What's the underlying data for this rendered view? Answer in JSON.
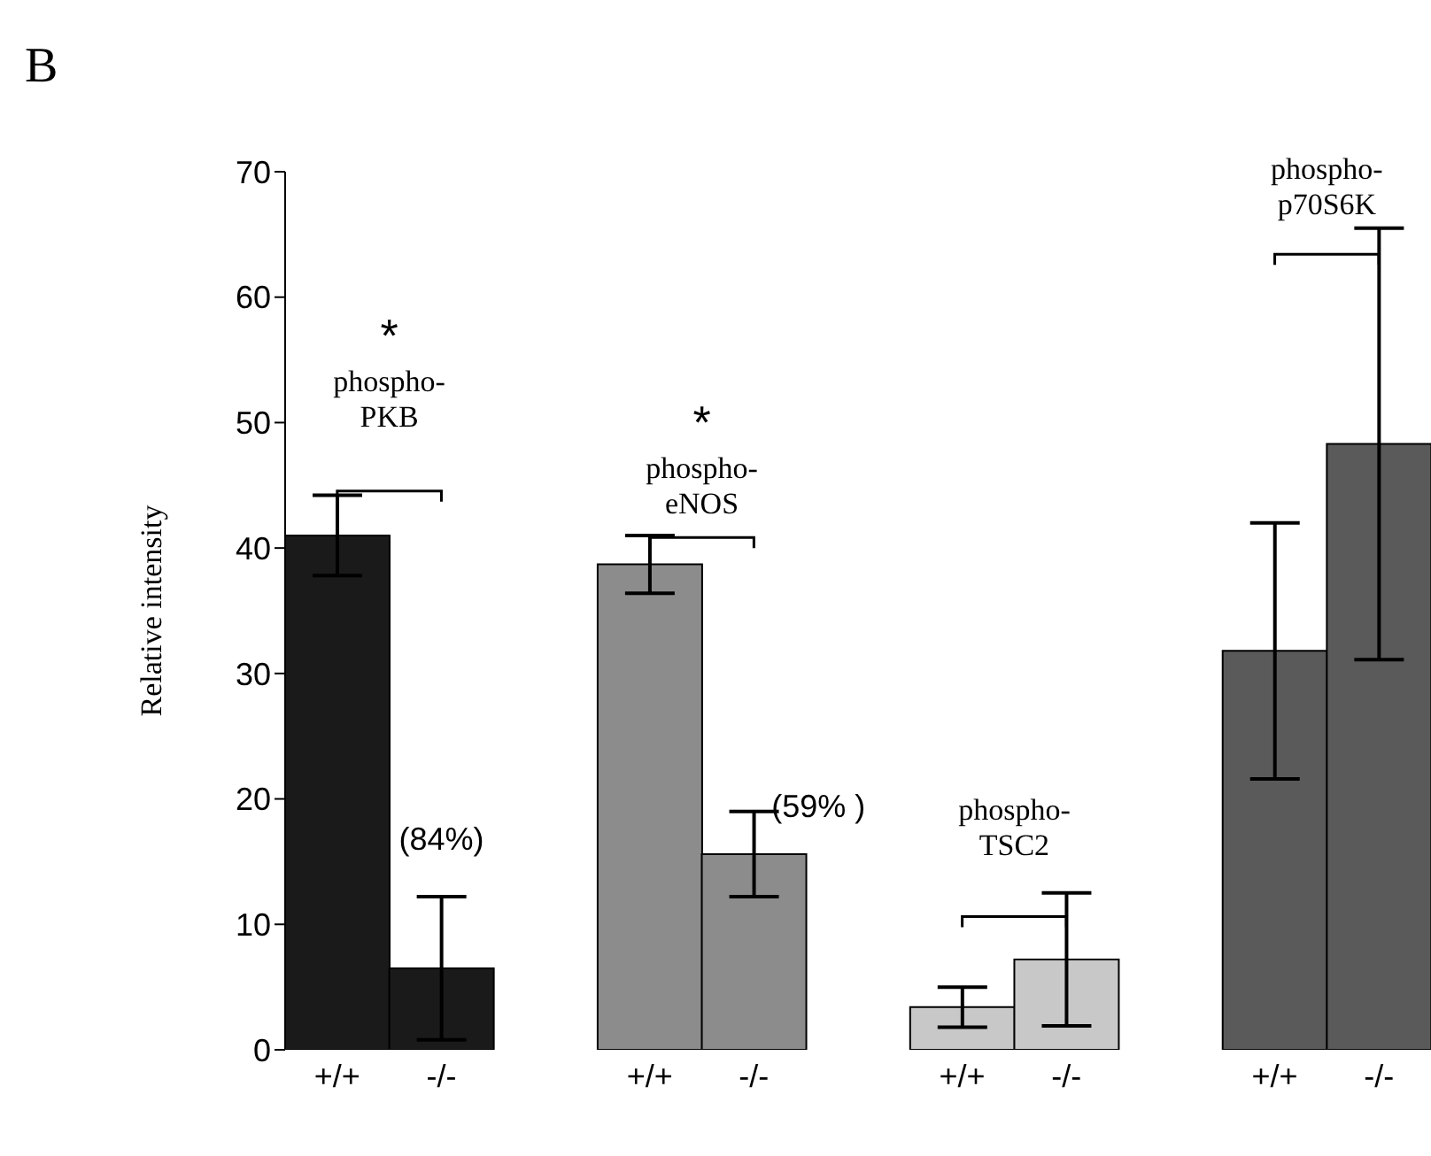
{
  "chart_data": {
    "type": "bar",
    "title": "B",
    "ylabel": "Relative intensity",
    "categories": [
      "+/+",
      "-/-",
      "+/+",
      "-/-",
      "+/+",
      "-/-",
      "+/+",
      "-/-"
    ],
    "values": [
      41,
      6.5,
      38.7,
      15.6,
      3.4,
      7.2,
      31.8,
      48.3
    ],
    "errors": [
      3.2,
      5.7,
      2.3,
      3.4,
      1.6,
      5.3,
      10.2,
      17.2
    ],
    "colors": [
      "#1a1a1a",
      "#1a1a1a",
      "#8c8c8c",
      "#8c8c8c",
      "#c8c8c8",
      "#c8c8c8",
      "#5a5a5a",
      "#5a5a5a"
    ],
    "ylim": [
      0,
      70
    ],
    "yticks": [
      0,
      10,
      20,
      30,
      40,
      50,
      60,
      70
    ],
    "grid": false,
    "legend": false,
    "annotations": [
      "*",
      "phospho-\nPKB",
      "*",
      "phospho-\neNOS",
      "(84%)",
      "(59% )",
      "phospho-\nTSC2",
      "phospho-\np70S6K"
    ]
  }
}
